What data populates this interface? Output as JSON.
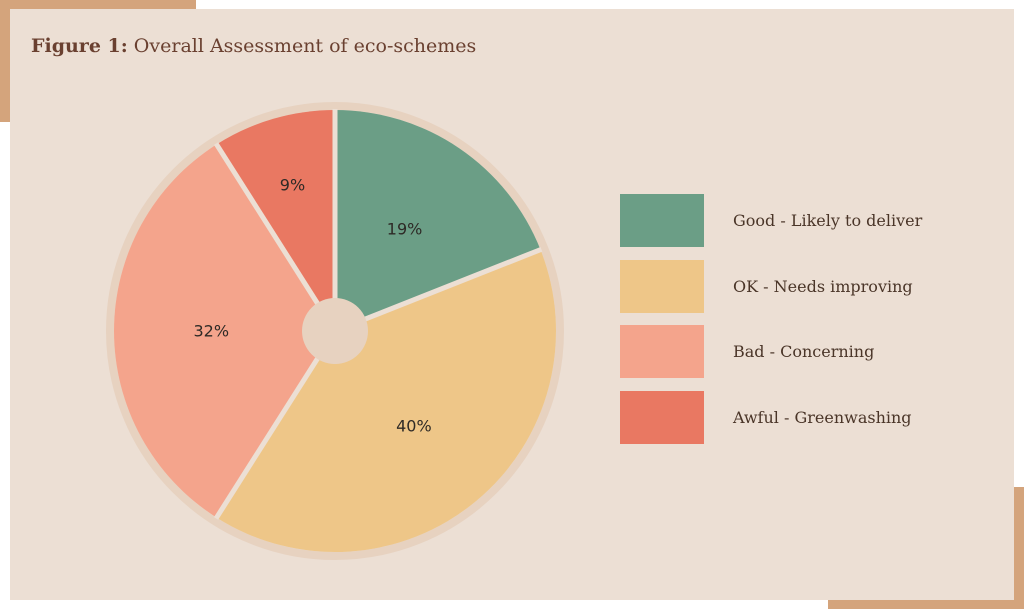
{
  "title": {
    "bold": "Figure 1:",
    "rest": " Overall Assessment of eco-schemes"
  },
  "colors": {
    "background": "#ecdfd4",
    "accent": "#d4a47c",
    "pie_rim": "#e7d2c0",
    "separator": "#ecdfd4"
  },
  "chart_data": {
    "type": "pie",
    "title": "Figure 1: Overall Assessment of eco-schemes",
    "start_angle_deg": 0,
    "direction": "clockwise",
    "legend_position": "right",
    "slices": [
      {
        "label": "Good - Likely to deliver",
        "value": 19,
        "value_label": "19%",
        "color": "#6b9e86"
      },
      {
        "label": "OK - Needs improving",
        "value": 40,
        "value_label": "40%",
        "color": "#eec688"
      },
      {
        "label": "Bad - Concerning",
        "value": 32,
        "value_label": "32%",
        "color": "#f4a48c"
      },
      {
        "label": "Awful - Greenwashing",
        "value": 9,
        "value_label": "9%",
        "color": "#e97862"
      }
    ]
  }
}
